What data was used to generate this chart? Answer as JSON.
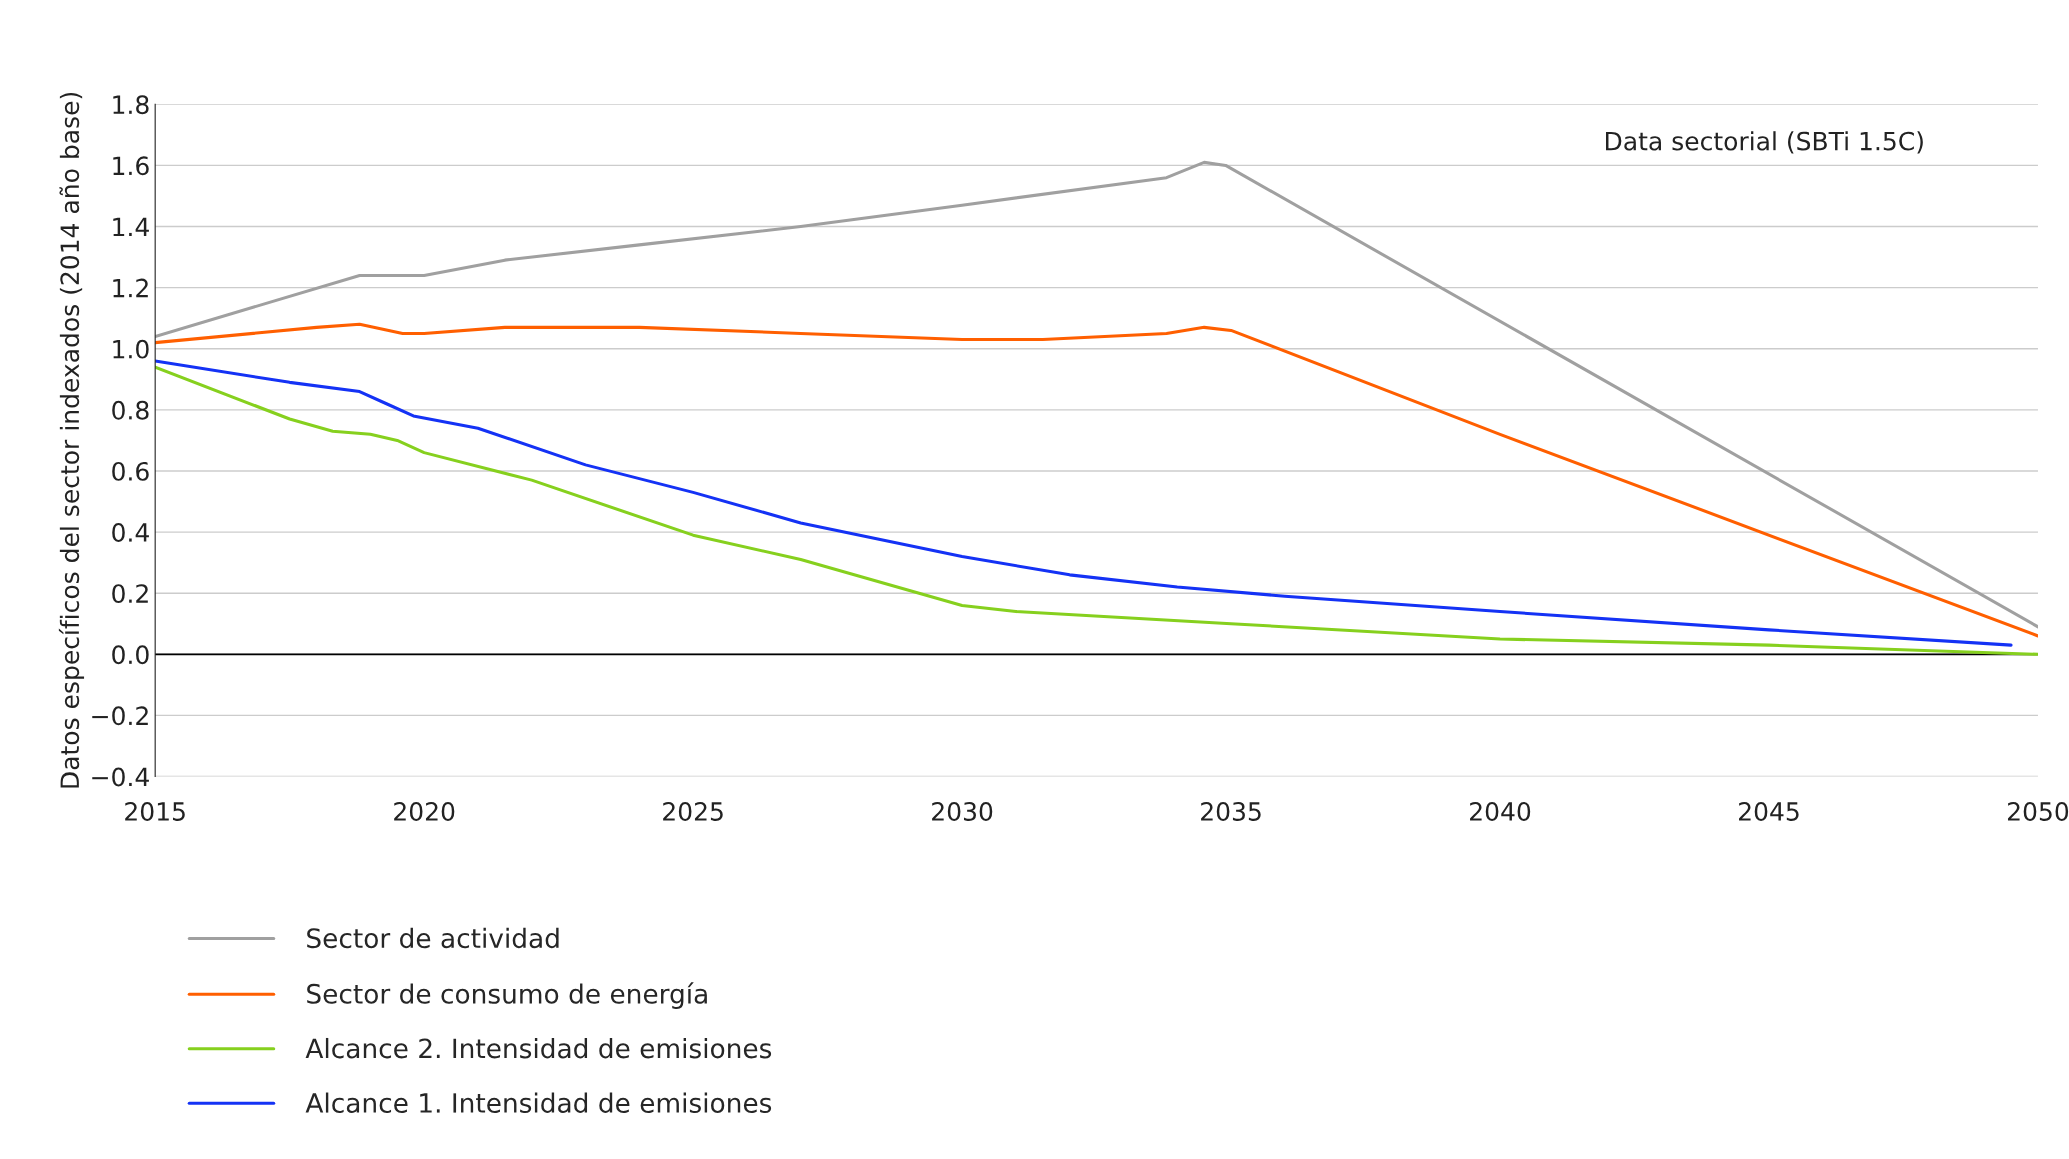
{
  "chart_data": {
    "type": "line",
    "ylabel": "Datos específicos del sector indexados (2014 año base)",
    "annotations": [
      "Data sectorial (SBTi 1.5C)"
    ],
    "xlim": [
      2015,
      2050
    ],
    "xticks": [
      2015,
      2020,
      2025,
      2030,
      2035,
      2040,
      2045,
      2050
    ],
    "ylim": [
      -0.4,
      1.8
    ],
    "yticks": [
      {
        "value": 1.8,
        "label": "1.8"
      },
      {
        "value": 1.6,
        "label": "1.6"
      },
      {
        "value": 1.4,
        "label": "1.4"
      },
      {
        "value": 1.2,
        "label": "1.2"
      },
      {
        "value": 1.0,
        "label": "1.0"
      },
      {
        "value": 0.8,
        "label": "0.8"
      },
      {
        "value": 0.6,
        "label": "0.6"
      },
      {
        "value": 0.4,
        "label": "0.4"
      },
      {
        "value": 0.2,
        "label": "0.2"
      },
      {
        "value": 0.0,
        "label": "0.0"
      },
      {
        "value": -0.2,
        "label": "−0.2"
      },
      {
        "value": -0.4,
        "label": "−0.4"
      }
    ],
    "grid": "y",
    "legend": "bottom",
    "marker": "none",
    "line_style": "solid",
    "ref_lines": [
      {
        "axis": "y",
        "value": 0,
        "label": null,
        "color": "#000000"
      }
    ],
    "series": [
      {
        "name": "Sector de actividad",
        "color": "#a0a0a0",
        "x": [
          2015,
          2018.8,
          2020,
          2021.5,
          2024,
          2027,
          2030,
          2033.8,
          2034.5,
          2034.9,
          2050
        ],
        "values": [
          1.04,
          1.24,
          1.24,
          1.29,
          1.34,
          1.4,
          1.47,
          1.56,
          1.61,
          1.6,
          0.09
        ]
      },
      {
        "name": "Sector de consumo de energía",
        "color": "#ff5f00",
        "x": [
          2015,
          2018,
          2018.8,
          2019.6,
          2020,
          2021.5,
          2023,
          2024,
          2027,
          2030,
          2031.5,
          2033.8,
          2034.5,
          2035,
          2040,
          2050
        ],
        "values": [
          1.02,
          1.07,
          1.08,
          1.05,
          1.05,
          1.07,
          1.07,
          1.07,
          1.05,
          1.03,
          1.03,
          1.05,
          1.07,
          1.06,
          0.72,
          0.06
        ]
      },
      {
        "name": "Alcance 2. Intensidad de emisiones",
        "color": "#86d01e",
        "x": [
          2015,
          2017.5,
          2018.3,
          2019,
          2019.5,
          2020,
          2022,
          2025,
          2027,
          2030,
          2031,
          2035,
          2040,
          2045,
          2050
        ],
        "values": [
          0.94,
          0.77,
          0.73,
          0.72,
          0.7,
          0.66,
          0.57,
          0.39,
          0.31,
          0.16,
          0.14,
          0.1,
          0.05,
          0.03,
          0.0
        ]
      },
      {
        "name": "Alcance 1. Intensidad de emisiones",
        "color": "#1432f5",
        "x": [
          2015,
          2017.5,
          2018.8,
          2019.3,
          2019.8,
          2021,
          2023,
          2025,
          2027,
          2030,
          2032,
          2034,
          2036,
          2040,
          2045,
          2049.5
        ],
        "values": [
          0.96,
          0.89,
          0.86,
          0.82,
          0.78,
          0.74,
          0.62,
          0.53,
          0.43,
          0.32,
          0.26,
          0.22,
          0.19,
          0.14,
          0.08,
          0.03
        ]
      }
    ]
  }
}
